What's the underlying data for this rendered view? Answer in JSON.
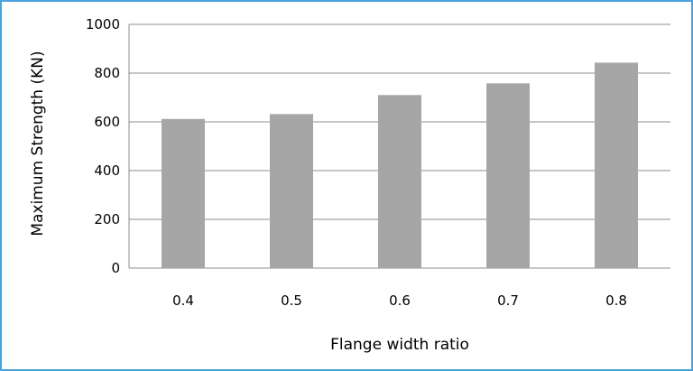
{
  "chart_data": {
    "type": "bar",
    "categories": [
      "0.4",
      "0.5",
      "0.6",
      "0.7",
      "0.8"
    ],
    "values": [
      612,
      632,
      710,
      758,
      843
    ],
    "ylim": [
      0,
      1000
    ],
    "yticks": [
      "0",
      "200",
      "400",
      "600",
      "800",
      "1000"
    ],
    "xlabel": "Flange width ratio",
    "ylabel": "Maximum Strength (KN)",
    "grid": true,
    "legend": "none",
    "bar_color": "#a6a6a6",
    "grid_color": "#8c8c8c",
    "frame_color": "#4aa3df"
  }
}
